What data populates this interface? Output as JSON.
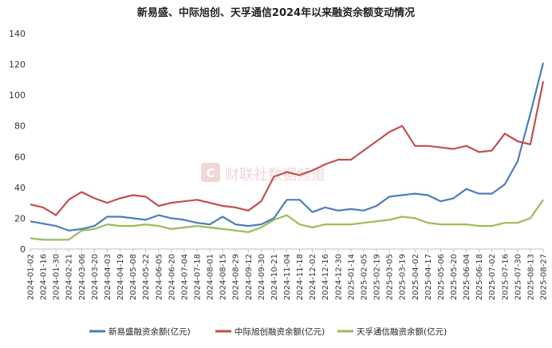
{
  "chart_data": {
    "type": "line",
    "title": "新易盛、中际旭创、天孚通信2024年以来融资余额变动情况",
    "watermark": "财联社数据频道",
    "xlabel": "",
    "ylabel": "",
    "ylim": [
      0,
      140
    ],
    "yticks": [
      0,
      20,
      40,
      60,
      80,
      100,
      120,
      140
    ],
    "grid": false,
    "legend": "bottom",
    "x": [
      "2024-01-02",
      "2024-01-16",
      "2024-01-30",
      "2024-02-21",
      "2024-03-06",
      "2024-03-20",
      "2024-04-03",
      "2024-04-19",
      "2024-05-08",
      "2024-05-22",
      "2024-06-05",
      "2024-06-20",
      "2024-07-04",
      "2024-07-18",
      "2024-08-01",
      "2024-08-15",
      "2024-08-29",
      "2024-09-12",
      "2024-09-30",
      "2024-10-21",
      "2024-11-04",
      "2024-11-18",
      "2024-12-02",
      "2024-12-16",
      "2024-12-30",
      "2025-01-14",
      "2025-02-05",
      "2025-02-19",
      "2025-03-05",
      "2025-03-19",
      "2025-04-02",
      "2025-04-17",
      "2025-05-06",
      "2025-05-20",
      "2025-06-04",
      "2025-06-18",
      "2025-07-02",
      "2025-07-16",
      "2025-07-30",
      "2025-08-13",
      "2025-08-27"
    ],
    "series": [
      {
        "name": "新易盛融资余额(亿元)",
        "color": "#4a7ebb",
        "values": [
          18,
          16.5,
          15,
          12,
          13,
          15,
          21,
          21,
          20,
          19,
          22,
          20,
          19,
          17,
          16,
          21,
          16,
          15,
          16,
          20,
          32,
          32,
          24,
          27,
          25,
          26,
          25,
          28,
          34,
          35,
          36,
          35,
          31,
          33,
          39,
          36,
          36,
          42,
          57,
          88,
          121
        ]
      },
      {
        "name": "中际旭创融资余额(亿元)",
        "color": "#c0504d",
        "values": [
          29,
          27,
          22,
          32,
          37,
          33,
          30,
          33,
          35,
          34,
          28,
          30,
          31,
          32,
          30,
          28,
          27,
          25,
          31,
          47,
          50,
          48,
          51,
          55,
          58,
          58,
          64,
          70,
          76,
          80,
          67,
          67,
          66,
          65,
          67,
          63,
          64,
          75,
          70,
          68,
          109
        ]
      },
      {
        "name": "天孚通信融资余额(亿元)",
        "color": "#9bbb59",
        "values": [
          7,
          6,
          6,
          6,
          12,
          13,
          16,
          15,
          15,
          16,
          15,
          13,
          14,
          15,
          14,
          13,
          12,
          11,
          14,
          19,
          22,
          16,
          14,
          16,
          16,
          16,
          17,
          18,
          19,
          21,
          20,
          17,
          16,
          16,
          16,
          15,
          15,
          17,
          17,
          20,
          32
        ]
      }
    ]
  }
}
